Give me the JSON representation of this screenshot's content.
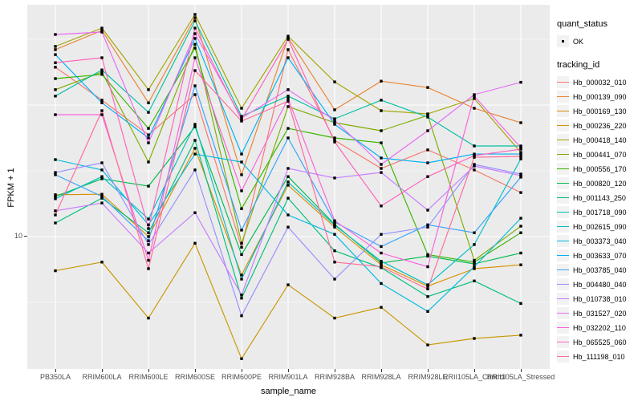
{
  "figure": {
    "panel_bg": "#EBEBEB",
    "grid_color": "#FFFFFF",
    "tick_color": "#333333",
    "tick_label_color": "#4D4D4D",
    "point_color": "#000000"
  },
  "y_axis": {
    "title": "FPKM + 1",
    "tick_labels": [
      "10"
    ],
    "tick_values": [
      10
    ],
    "scale": "log10"
  },
  "x_axis": {
    "title": "sample_name"
  },
  "legend": {
    "quant_status": {
      "title": "quant_status",
      "items": [
        {
          "label": "OK",
          "symbol": "black-point"
        }
      ]
    },
    "tracking_id_title": "tracking_id"
  },
  "chart_data": {
    "type": "line",
    "title": "",
    "xlabel": "sample_name",
    "ylabel": "FPKM + 1",
    "y_scale": "log10",
    "ylim": [
      1,
      580
    ],
    "y_gridlines_major": [
      10,
      100
    ],
    "y_gridlines_minor": [
      3.162,
      31.62,
      316.2
    ],
    "grid": true,
    "legend_position": "right",
    "point_shape": "small-black-square",
    "x_categories": [
      "PB350LA",
      "RRIM600LA",
      "RRIM600LE",
      "RRIM600SE",
      "RRIM600PE",
      "RRIM901LA",
      "RRIM928BA",
      "RRIM928LA",
      "RRIM928LE",
      "RRII105LA_Control",
      "RRII105LA_Stressed"
    ],
    "series": [
      {
        "name": "Hb_000032_010",
        "color": "#F8766D",
        "quant_status": "OK",
        "values": [
          194,
          109,
          59.4,
          120,
          8.3,
          264,
          53.9,
          33,
          45.6,
          32.1,
          21.6
        ]
      },
      {
        "name": "Hb_000139_090",
        "color": "#EA8331",
        "quant_status": "OK",
        "values": [
          264,
          369,
          104,
          462,
          29.5,
          325,
          92,
          152,
          136,
          94.6,
          73.4
        ]
      },
      {
        "name": "Hb_000169_130",
        "color": "#D89000",
        "quant_status": "OK",
        "values": [
          20.8,
          21,
          10,
          46.9,
          5.1,
          24.6,
          11.8,
          6.1,
          4.2,
          5.7,
          6.1
        ]
      },
      {
        "name": "Hb_000236_220",
        "color": "#C99800",
        "quant_status": "OK",
        "values": [
          5.5,
          6.4,
          2.4,
          8.9,
          1.18,
          4.3,
          2.4,
          2.9,
          1.5,
          1.68,
          1.78
        ]
      },
      {
        "name": "Hb_000418_140",
        "color": "#A3A500",
        "quant_status": "OK",
        "values": [
          279,
          385,
          131,
          489,
          94.6,
          334,
          150,
          90.6,
          85.7,
          112,
          43.7
        ]
      },
      {
        "name": "Hb_000441_070",
        "color": "#7CAE00",
        "quant_status": "OK",
        "values": [
          131,
          178,
          36.9,
          290,
          8.9,
          97.3,
          73.4,
          63.8,
          83.4,
          6.6,
          12
        ]
      },
      {
        "name": "Hb_000556_170",
        "color": "#39B600",
        "quant_status": "OK",
        "values": [
          159,
          171,
          66.5,
          271,
          16.3,
          66.5,
          56.2,
          51.6,
          7.3,
          6.4,
          10.7
        ]
      },
      {
        "name": "Hb_000820_120",
        "color": "#00BB4E",
        "quant_status": "OK",
        "values": [
          20.2,
          27.5,
          24.2,
          68.4,
          7.3,
          28.6,
          12.4,
          6.3,
          7.1,
          6.2,
          7.5
        ]
      },
      {
        "name": "Hb_001143_250",
        "color": "#00BF7D",
        "quant_status": "OK",
        "values": [
          12.7,
          19.6,
          10.7,
          53.9,
          3.4,
          19.6,
          7.8,
          5.8,
          3.5,
          4.6,
          3.1
        ]
      },
      {
        "name": "Hb_001718_090",
        "color": "#00C1A3",
        "quant_status": "OK",
        "values": [
          117,
          185,
          88,
          437,
          82.2,
          117,
          78.7,
          109,
          81,
          48.9,
          48.9
        ]
      },
      {
        "name": "Hb_002615_090",
        "color": "#00BFC4",
        "quant_status": "OK",
        "values": [
          19.4,
          28.6,
          13.6,
          71.4,
          4.75,
          26,
          12.2,
          6.5,
          4.3,
          8.7,
          39
        ]
      },
      {
        "name": "Hb_003373_040",
        "color": "#00BAE0",
        "quant_status": "OK",
        "values": [
          38.5,
          32.1,
          12.3,
          42.4,
          36.9,
          14.6,
          10.4,
          4.4,
          2.7,
          5.9,
          13.8
        ]
      },
      {
        "name": "Hb_003633_070",
        "color": "#00B0F6",
        "quant_status": "OK",
        "values": [
          242,
          104,
          56.2,
          321,
          42.4,
          229,
          71.4,
          39.6,
          36.4,
          42.4,
          42.4
        ]
      },
      {
        "name": "Hb_003785_040",
        "color": "#35A2FF",
        "quant_status": "OK",
        "values": [
          29.5,
          20.2,
          9.3,
          140,
          11.2,
          56.2,
          12.9,
          8.4,
          12.3,
          10.7,
          28.3
        ]
      },
      {
        "name": "Hb_004480_040",
        "color": "#9590FF",
        "quant_status": "OK",
        "values": [
          30.7,
          36.4,
          8.7,
          32.1,
          2.5,
          11.8,
          4.75,
          10.4,
          11.8,
          35.4,
          29.9
        ]
      },
      {
        "name": "Hb_010738_010",
        "color": "#C77CFF",
        "quant_status": "OK",
        "values": [
          15.7,
          18,
          7.5,
          15.2,
          3.6,
          33,
          27.9,
          30.7,
          15.9,
          34.4,
          29.1
        ]
      },
      {
        "name": "Hb_031527_020",
        "color": "#E76BF3",
        "quant_status": "OK",
        "values": [
          344,
          359,
          51.6,
          349,
          79.9,
          131,
          76.6,
          35.4,
          63.8,
          120,
          149
        ]
      },
      {
        "name": "Hb_032202_110",
        "color": "#FA62DB",
        "quant_status": "OK",
        "values": [
          84.5,
          84.5,
          6.6,
          229,
          22.3,
          112,
          13.2,
          7.5,
          5.9,
          117,
          47.5
        ]
      },
      {
        "name": "Hb_065525_060",
        "color": "#FF62BC",
        "quant_status": "OK",
        "values": [
          210,
          229,
          11.5,
          385,
          77.6,
          316,
          52.4,
          17.1,
          28.6,
          41.3,
          46.2
        ]
      },
      {
        "name": "Hb_111198_010",
        "color": "#FF6A98",
        "quant_status": "OK",
        "values": [
          14.6,
          90.6,
          5.7,
          183,
          75.5,
          107,
          6.4,
          5.9,
          4.0,
          40.1,
          40.7
        ]
      }
    ]
  }
}
